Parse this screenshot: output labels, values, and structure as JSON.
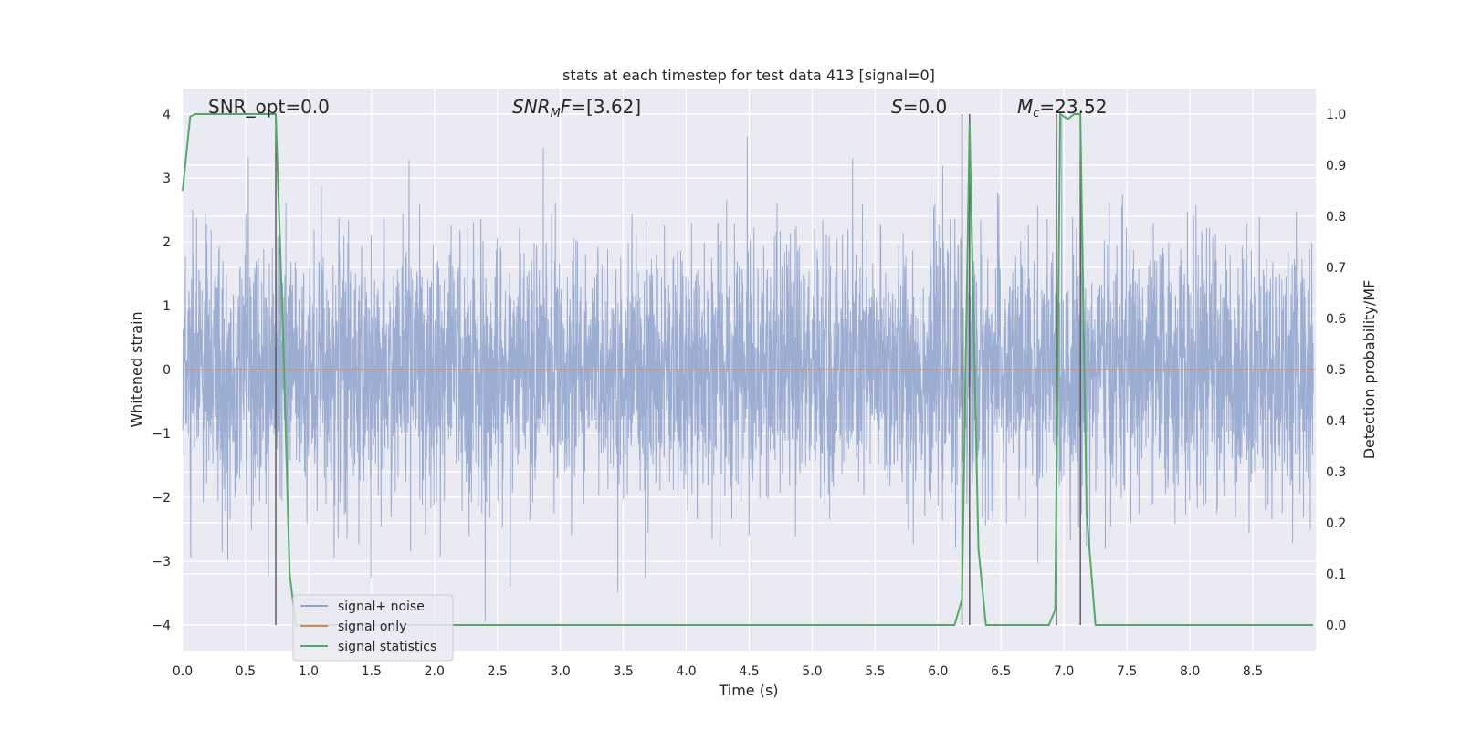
{
  "chart_data": {
    "type": "line",
    "title": "stats at each timestep for test data 413 [signal=0]",
    "xlabel": "Time (s)",
    "ylabel": "Whitened strain",
    "ylabel_right": "Detection probability/MF",
    "xlim": [
      0.0,
      9.0
    ],
    "ylim": [
      -4.4,
      4.4
    ],
    "ylim_right": [
      -0.05,
      1.05
    ],
    "x_ticks": [
      "0.0",
      "0.5",
      "1.0",
      "1.5",
      "2.0",
      "2.5",
      "3.0",
      "3.5",
      "4.0",
      "4.5",
      "5.0",
      "5.5",
      "6.0",
      "6.5",
      "7.0",
      "7.5",
      "8.0",
      "8.5"
    ],
    "y_ticks": [
      "−4",
      "−3",
      "−2",
      "−1",
      "0",
      "1",
      "2",
      "3",
      "4"
    ],
    "y_ticks_right": [
      "0.0",
      "0.1",
      "0.2",
      "0.3",
      "0.4",
      "0.5",
      "0.6",
      "0.7",
      "0.8",
      "0.9",
      "1.0"
    ],
    "grid": true,
    "legend_position": "lower-left",
    "annotations": {
      "snr_opt": "SNR_opt=0.0",
      "snr_mf_main": "SNR",
      "snr_mf_sub": "M",
      "snr_mf_italic": "F",
      "snr_mf_value": "=[3.62]",
      "s_symbol": "S",
      "s_value": "=0.0",
      "mc_symbol": "M",
      "mc_sub": "c",
      "mc_value": "=23.52"
    },
    "series": [
      {
        "name": "signal+ noise",
        "axis": "left",
        "color": "#8ea2cc",
        "note_sampling": "whitened noise, approx. unit variance, dense samples over 0-9 s"
      },
      {
        "name": "signal only",
        "axis": "left",
        "color": "#dd8452",
        "values_x": [
          0.0,
          9.0
        ],
        "values_y": [
          0.0,
          0.0
        ]
      },
      {
        "name": "signal statistics",
        "axis": "right",
        "color": "#55a868",
        "x": [
          0.0,
          0.06,
          0.1,
          0.3,
          0.5,
          0.7,
          0.74,
          0.8,
          0.85,
          0.9,
          1.0,
          2.0,
          3.0,
          4.0,
          5.0,
          6.0,
          6.13,
          6.19,
          6.25,
          6.32,
          6.38,
          6.5,
          6.88,
          6.93,
          6.97,
          7.03,
          7.08,
          7.13,
          7.18,
          7.25,
          7.5,
          8.0,
          8.5,
          8.98
        ],
        "y": [
          0.85,
          0.995,
          1.0,
          1.0,
          1.0,
          1.0,
          1.0,
          0.55,
          0.1,
          0.0,
          0.0,
          0.0,
          0.0,
          0.0,
          0.0,
          0.0,
          0.0,
          0.05,
          0.98,
          0.15,
          0.0,
          0.0,
          0.0,
          0.03,
          1.0,
          0.99,
          1.0,
          1.0,
          0.22,
          0.0,
          0.0,
          0.0,
          0.0,
          0.0
        ]
      }
    ],
    "vertical_markers_x": [
      0.74,
      6.19,
      6.25,
      6.94,
      7.13
    ]
  }
}
